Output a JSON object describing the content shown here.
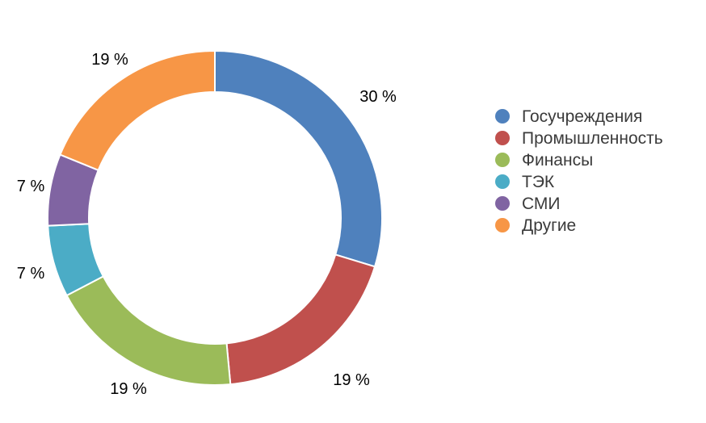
{
  "chart_data": {
    "type": "pie",
    "title": "",
    "legend_position": "right",
    "categories": [
      "Госучреждения",
      "Промышленность",
      "Финансы",
      "ТЭК",
      "СМИ",
      "Другие"
    ],
    "values": [
      30,
      19,
      19,
      7,
      7,
      19
    ],
    "value_labels": [
      "30 %",
      "19 %",
      "19 %",
      "7 %",
      "7 %",
      "19 %"
    ],
    "colors": [
      "#4F81BD",
      "#C0504D",
      "#9BBB59",
      "#4BACC6",
      "#8064A2",
      "#F79646"
    ]
  }
}
